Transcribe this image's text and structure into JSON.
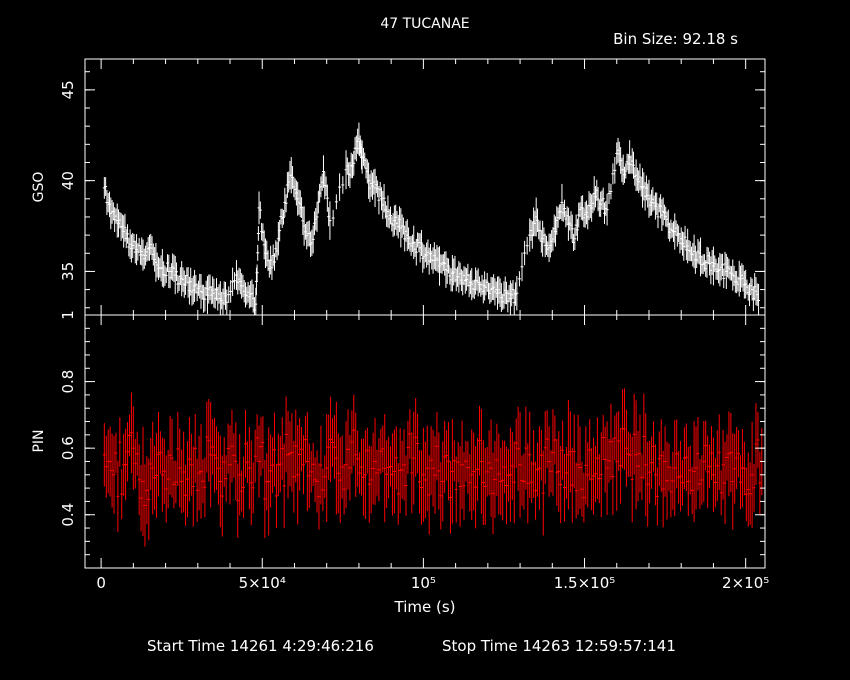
{
  "title": "47 TUCANAE",
  "bin_size": "Bin Size:  92.18  s",
  "x_label": "Time (s)",
  "footer": {
    "start": "Start Time 14261  4:29:46:216",
    "stop": "Stop Time 14263 12:59:57:141"
  },
  "colors": {
    "gso": "#ffffff",
    "pin": "#ff0000",
    "axes": "#ffffff",
    "background": "#000000"
  },
  "chart_data": [
    {
      "type": "line",
      "ylabel": "GSO",
      "xlim": [
        -5000,
        206000
      ],
      "ylim": [
        32.6,
        46.7
      ],
      "y_ticks": [
        35,
        40,
        45
      ],
      "y_tick_labels": [
        "35",
        "40",
        "45"
      ],
      "series": [
        {
          "values": [
            [
              1000,
              39.6
            ],
            [
              3000,
              38.2
            ],
            [
              5000,
              37.8
            ],
            [
              7000,
              37.2
            ],
            [
              9000,
              36.5
            ],
            [
              11000,
              36.2
            ],
            [
              13000,
              35.9
            ],
            [
              15000,
              36.3
            ],
            [
              17000,
              35.5
            ],
            [
              19000,
              35.2
            ],
            [
              21000,
              35.0
            ],
            [
              23000,
              34.8
            ],
            [
              25000,
              34.6
            ],
            [
              27000,
              34.4
            ],
            [
              29000,
              34.2
            ],
            [
              31000,
              33.9
            ],
            [
              33000,
              33.7
            ],
            [
              35000,
              33.8
            ],
            [
              37000,
              33.5
            ],
            [
              39000,
              33.3
            ],
            [
              42000,
              34.8
            ],
            [
              44000,
              34.2
            ],
            [
              46000,
              33.6
            ],
            [
              48000,
              33.2
            ],
            [
              49000,
              38.5
            ],
            [
              51000,
              36.0
            ],
            [
              53000,
              35.2
            ],
            [
              55000,
              36.8
            ],
            [
              57000,
              38.8
            ],
            [
              59000,
              40.3
            ],
            [
              61000,
              39.0
            ],
            [
              63000,
              37.5
            ],
            [
              65000,
              36.5
            ],
            [
              67000,
              38.0
            ],
            [
              69000,
              40.5
            ],
            [
              71000,
              37.8
            ],
            [
              76000,
              40.6
            ],
            [
              78000,
              40.8
            ],
            [
              80000,
              42.3
            ],
            [
              81000,
              41.3
            ],
            [
              83000,
              40.0
            ],
            [
              85000,
              39.6
            ],
            [
              87000,
              39.0
            ],
            [
              89000,
              38.3
            ],
            [
              91000,
              37.8
            ],
            [
              93000,
              37.4
            ],
            [
              95000,
              37.0
            ],
            [
              97000,
              36.6
            ],
            [
              99000,
              36.3
            ],
            [
              101000,
              35.9
            ],
            [
              103000,
              35.6
            ],
            [
              105000,
              35.3
            ],
            [
              107000,
              35.1
            ],
            [
              109000,
              34.9
            ],
            [
              111000,
              34.7
            ],
            [
              113000,
              34.5
            ],
            [
              115000,
              34.3
            ],
            [
              117000,
              34.4
            ],
            [
              119000,
              34.2
            ],
            [
              121000,
              34.0
            ],
            [
              123000,
              33.8
            ],
            [
              125000,
              33.7
            ],
            [
              127000,
              33.5
            ],
            [
              129000,
              33.8
            ],
            [
              133000,
              37.0
            ],
            [
              135000,
              38.0
            ],
            [
              137000,
              36.8
            ],
            [
              139000,
              36.3
            ],
            [
              141000,
              37.2
            ],
            [
              143000,
              38.8
            ],
            [
              145000,
              37.6
            ],
            [
              147000,
              36.8
            ],
            [
              149000,
              38.5
            ],
            [
              151000,
              38.0
            ],
            [
              153000,
              39.3
            ],
            [
              155000,
              38.7
            ],
            [
              157000,
              38.4
            ],
            [
              160000,
              41.5
            ],
            [
              162000,
              40.6
            ],
            [
              164000,
              41.3
            ],
            [
              166000,
              40.3
            ],
            [
              168000,
              39.6
            ],
            [
              170000,
              39.0
            ],
            [
              172000,
              38.6
            ],
            [
              174000,
              38.1
            ],
            [
              176000,
              37.6
            ],
            [
              178000,
              37.2
            ],
            [
              180000,
              36.8
            ],
            [
              182000,
              36.4
            ],
            [
              184000,
              36.1
            ],
            [
              186000,
              35.8
            ],
            [
              188000,
              35.5
            ],
            [
              190000,
              35.3
            ],
            [
              192000,
              35.1
            ],
            [
              194000,
              35.0
            ],
            [
              196000,
              34.8
            ],
            [
              198000,
              34.6
            ],
            [
              200000,
              34.3
            ],
            [
              202000,
              34.0
            ],
            [
              204000,
              33.4
            ]
          ]
        }
      ]
    },
    {
      "type": "line",
      "ylabel": "PIN",
      "xlim": [
        -5000,
        206000
      ],
      "ylim": [
        0.24,
        1.0
      ],
      "y_ticks": [
        0.4,
        0.6,
        0.8,
        1.0
      ],
      "y_tick_labels": [
        "0.4",
        "0.6",
        "0.8",
        "1"
      ],
      "x_ticks": [
        0,
        50000,
        100000,
        150000,
        200000
      ],
      "x_tick_labels": [
        "0",
        "5×10⁴",
        "10⁵",
        "1.5×10⁵",
        "2×10⁵"
      ],
      "series": [
        {
          "values": [
            [
              1000,
              0.58
            ],
            [
              4000,
              0.52
            ],
            [
              7000,
              0.55
            ],
            [
              10000,
              0.6
            ],
            [
              13000,
              0.5
            ],
            [
              16000,
              0.54
            ],
            [
              19000,
              0.52
            ],
            [
              22000,
              0.57
            ],
            [
              25000,
              0.5
            ],
            [
              28000,
              0.55
            ],
            [
              31000,
              0.53
            ],
            [
              34000,
              0.58
            ],
            [
              37000,
              0.5
            ],
            [
              40000,
              0.55
            ],
            [
              43000,
              0.52
            ],
            [
              46000,
              0.54
            ],
            [
              49000,
              0.56
            ],
            [
              52000,
              0.5
            ],
            [
              55000,
              0.55
            ],
            [
              58000,
              0.58
            ],
            [
              61000,
              0.52
            ],
            [
              64000,
              0.56
            ],
            [
              67000,
              0.5
            ],
            [
              70000,
              0.54
            ],
            [
              73000,
              0.57
            ],
            [
              76000,
              0.55
            ],
            [
              79000,
              0.58
            ],
            [
              82000,
              0.52
            ],
            [
              85000,
              0.56
            ],
            [
              88000,
              0.54
            ],
            [
              91000,
              0.53
            ],
            [
              94000,
              0.55
            ],
            [
              97000,
              0.57
            ],
            [
              100000,
              0.52
            ],
            [
              103000,
              0.54
            ],
            [
              106000,
              0.5
            ],
            [
              109000,
              0.53
            ],
            [
              112000,
              0.55
            ],
            [
              115000,
              0.52
            ],
            [
              118000,
              0.56
            ],
            [
              121000,
              0.54
            ],
            [
              124000,
              0.5
            ],
            [
              127000,
              0.52
            ],
            [
              130000,
              0.55
            ],
            [
              133000,
              0.58
            ],
            [
              136000,
              0.54
            ],
            [
              139000,
              0.56
            ],
            [
              142000,
              0.53
            ],
            [
              145000,
              0.58
            ],
            [
              148000,
              0.55
            ],
            [
              151000,
              0.52
            ],
            [
              154000,
              0.57
            ],
            [
              157000,
              0.54
            ],
            [
              160000,
              0.56
            ],
            [
              163000,
              0.6
            ],
            [
              166000,
              0.58
            ],
            [
              169000,
              0.55
            ],
            [
              172000,
              0.52
            ],
            [
              175000,
              0.56
            ],
            [
              178000,
              0.54
            ],
            [
              181000,
              0.57
            ],
            [
              184000,
              0.53
            ],
            [
              187000,
              0.56
            ],
            [
              190000,
              0.52
            ],
            [
              193000,
              0.55
            ],
            [
              196000,
              0.5
            ],
            [
              199000,
              0.54
            ],
            [
              202000,
              0.52
            ],
            [
              205000,
              0.56
            ]
          ]
        }
      ]
    }
  ]
}
